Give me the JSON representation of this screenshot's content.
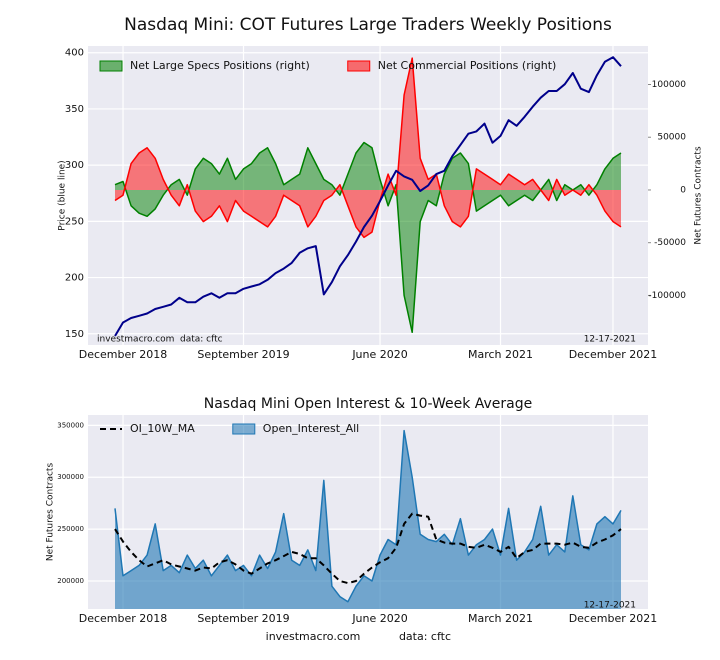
{
  "chart_data": [
    {
      "type": "line",
      "title": "Nasdaq Mini: COT Futures Large Traders Weekly Positions",
      "ylabel": "Price (blue line)",
      "y2label": "Net Futures Contracts",
      "categories": [
        null,
        "December 2018",
        null,
        null,
        null,
        null,
        null,
        null,
        null,
        null,
        null,
        null,
        null,
        null,
        null,
        null,
        "September 2019",
        null,
        null,
        null,
        null,
        null,
        null,
        null,
        null,
        null,
        null,
        null,
        null,
        null,
        null,
        null,
        null,
        "June 2020",
        null,
        null,
        null,
        null,
        null,
        null,
        null,
        null,
        null,
        null,
        null,
        null,
        null,
        null,
        "March 2021",
        null,
        null,
        null,
        null,
        null,
        null,
        null,
        null,
        null,
        null,
        null,
        null,
        null,
        "December 2021",
        null
      ],
      "series": [
        {
          "name": "Net Large Specs Positions (right)",
          "color": "#008000",
          "style": "area",
          "axis": "y2",
          "values": [
            5000,
            8000,
            -15000,
            -22000,
            -25000,
            -18000,
            -5000,
            5000,
            10000,
            -5000,
            20000,
            30000,
            25000,
            15000,
            30000,
            10000,
            20000,
            25000,
            35000,
            40000,
            25000,
            5000,
            10000,
            15000,
            40000,
            25000,
            10000,
            5000,
            -5000,
            15000,
            35000,
            45000,
            40000,
            10000,
            -15000,
            5000,
            -100000,
            -135000,
            -30000,
            -10000,
            -15000,
            15000,
            30000,
            35000,
            25000,
            -20000,
            -15000,
            -10000,
            -5000,
            -15000,
            -10000,
            -5000,
            -10000,
            0,
            10000,
            -10000,
            5000,
            0,
            5000,
            -5000,
            5000,
            20000,
            30000,
            35000
          ]
        },
        {
          "name": "Net Commercial Positions (right)",
          "color": "#ff0000",
          "style": "area",
          "axis": "y2",
          "values": [
            -10000,
            -5000,
            25000,
            35000,
            40000,
            30000,
            10000,
            -5000,
            -15000,
            5000,
            -20000,
            -30000,
            -25000,
            -15000,
            -30000,
            -10000,
            -20000,
            -25000,
            -30000,
            -35000,
            -25000,
            -5000,
            -10000,
            -15000,
            -35000,
            -25000,
            -10000,
            -5000,
            5000,
            -15000,
            -35000,
            -45000,
            -40000,
            -10000,
            15000,
            -5000,
            90000,
            125000,
            30000,
            10000,
            15000,
            -15000,
            -30000,
            -35000,
            -25000,
            20000,
            15000,
            10000,
            5000,
            15000,
            10000,
            5000,
            10000,
            0,
            -10000,
            10000,
            -5000,
            0,
            -5000,
            5000,
            -5000,
            -20000,
            -30000,
            -35000
          ]
        },
        {
          "color": "#00008b",
          "style": "line",
          "values": [
            148,
            160,
            164,
            166,
            168,
            172,
            174,
            176,
            182,
            178,
            178,
            183,
            186,
            182,
            186,
            186,
            190,
            192,
            194,
            198,
            204,
            208,
            213,
            222,
            226,
            228,
            185,
            196,
            210,
            220,
            232,
            245,
            255,
            268,
            282,
            295,
            290,
            287,
            277,
            282,
            292,
            295,
            308,
            318,
            328,
            330,
            337,
            320,
            326,
            340,
            335,
            343,
            352,
            360,
            366,
            366,
            372,
            382,
            368,
            365,
            380,
            392,
            396,
            388
          ]
        }
      ],
      "ylim": [
        140,
        406
      ],
      "yticks": [
        150,
        200,
        250,
        300,
        350,
        400
      ],
      "y2lim": [
        -147000,
        136500
      ],
      "y2ticks": [
        -100000,
        -50000,
        0,
        50000,
        100000
      ],
      "grid": true,
      "legend": "upper left",
      "annotations": [
        "investmacro.com",
        "data: cftc",
        "12-17-2021"
      ]
    },
    {
      "type": "area",
      "title": "Nasdaq Mini Open Interest & 10-Week Average",
      "ylabel": "Net Futures Contracts",
      "categories": [
        null,
        "December 2018",
        null,
        null,
        null,
        null,
        null,
        null,
        null,
        null,
        null,
        null,
        null,
        null,
        null,
        null,
        "September 2019",
        null,
        null,
        null,
        null,
        null,
        null,
        null,
        null,
        null,
        null,
        null,
        null,
        null,
        null,
        null,
        null,
        "June 2020",
        null,
        null,
        null,
        null,
        null,
        null,
        null,
        null,
        null,
        null,
        null,
        null,
        null,
        null,
        "March 2021",
        null,
        null,
        null,
        null,
        null,
        null,
        null,
        null,
        null,
        null,
        null,
        null,
        null,
        "December 2021",
        null
      ],
      "series": [
        {
          "name": "OI_10W_MA",
          "color": "#000000",
          "style": "line",
          "dash": true,
          "values": [
            250000,
            238000,
            228000,
            220000,
            214000,
            217000,
            220000,
            216000,
            214000,
            212000,
            210000,
            213000,
            212000,
            218000,
            220000,
            216000,
            210000,
            207000,
            212000,
            217000,
            220000,
            224000,
            228000,
            226000,
            222000,
            222000,
            215000,
            207000,
            200000,
            198000,
            200000,
            207000,
            213000,
            218000,
            222000,
            232000,
            255000,
            265000,
            263000,
            262000,
            240000,
            237000,
            236000,
            236000,
            233000,
            232000,
            235000,
            232000,
            228000,
            233000,
            222000,
            228000,
            230000,
            236000,
            236000,
            236000,
            235000,
            237000,
            233000,
            232000,
            237000,
            240000,
            244000,
            250000
          ]
        },
        {
          "name": "Open_Interest_All",
          "color": "#1f77b4",
          "style": "area",
          "values": [
            270000,
            205000,
            210000,
            215000,
            225000,
            255000,
            210000,
            215000,
            208000,
            225000,
            212000,
            220000,
            205000,
            215000,
            225000,
            210000,
            215000,
            205000,
            225000,
            212000,
            228000,
            265000,
            220000,
            215000,
            230000,
            210000,
            297000,
            195000,
            185000,
            180000,
            195000,
            205000,
            200000,
            225000,
            240000,
            235000,
            345000,
            300000,
            245000,
            240000,
            238000,
            245000,
            235000,
            260000,
            225000,
            235000,
            240000,
            250000,
            225000,
            270000,
            220000,
            228000,
            240000,
            272000,
            225000,
            235000,
            228000,
            282000,
            235000,
            230000,
            255000,
            262000,
            255000,
            268000
          ]
        }
      ],
      "ylim": [
        173000,
        360000
      ],
      "yticks": [
        200000,
        250000,
        300000,
        350000
      ],
      "grid": true,
      "legend": "upper left",
      "annotations": [
        "12-17-2021"
      ]
    }
  ],
  "footer": {
    "site": "investmacro.com",
    "source": "data: cftc"
  }
}
